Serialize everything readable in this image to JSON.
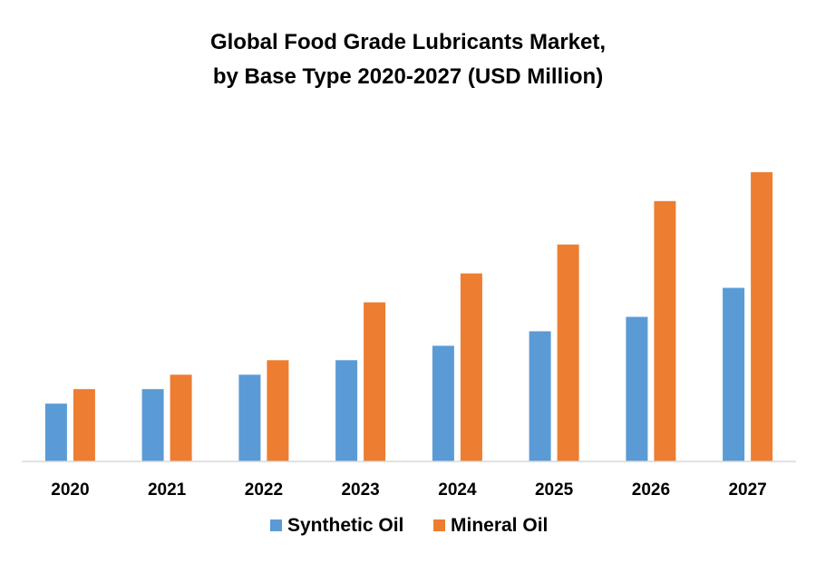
{
  "chart_data": {
    "type": "bar",
    "title": "Global Food Grade Lubricants  Market,",
    "subtitle": "by Base Type 2020-2027 (USD Million)",
    "xlabel": "",
    "ylabel": "",
    "categories": [
      "2020",
      "2021",
      "2022",
      "2023",
      "2024",
      "2025",
      "2026",
      "2027"
    ],
    "series": [
      {
        "name": "Synthetic Oil",
        "color": "#5B9BD5",
        "values": [
          4,
          5,
          6,
          7,
          8,
          9,
          10,
          12
        ]
      },
      {
        "name": "Mineral Oil",
        "color": "#ED7D31",
        "values": [
          5,
          6,
          7,
          11,
          13,
          15,
          18,
          20
        ]
      }
    ],
    "ylim": [
      0,
      22
    ],
    "grid": false,
    "legend_position": "bottom"
  }
}
